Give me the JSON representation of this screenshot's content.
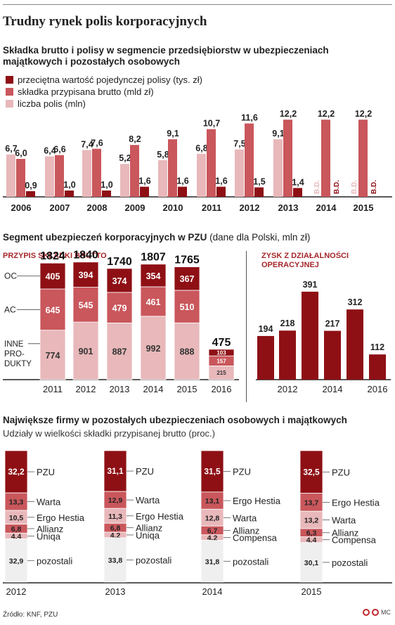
{
  "title": "Trudny rynek polis korporacyjnych",
  "section1": {
    "title_line1": "Składka brutto i polisy w segmencie przedsiębiorstw w ubezpieczeniach",
    "title_line2": "majątkowych i pozostałych osobowych"
  },
  "section2": {
    "title_bold": "Segment ubezpieczeń korporacyjnych w PZU",
    "title_normal": "(dane dla Polski, mln zł)",
    "left_label": "PRZYPIS SKŁADKI BRUTTO",
    "right_label_line1": "ZYSK Z DZIAŁALNOŚCI",
    "right_label_line2": "OPERACYJNEJ"
  },
  "section3": {
    "title": "Największe firmy w pozostałych ubezpieczeniach osobowych i majątkowych",
    "subtitle": "Udziały w wielkości składki przypisanej brutto (proc.)"
  },
  "source": "Źródło: KNF, PZU",
  "logo_text": "MC",
  "colors": {
    "dark": "#8e1015",
    "mid": "#c9575c",
    "light": "#e8b8ba",
    "grey": "#efefef",
    "accent": "#a5262a"
  },
  "chart_data": [
    {
      "id": "polisy",
      "type": "bar",
      "categories": [
        "2006",
        "2007",
        "2008",
        "2009",
        "2010",
        "2011",
        "2012",
        "2013",
        "2014",
        "2015"
      ],
      "series": [
        {
          "name": "przeciętna wartość pojedynczej polisy (tys. zł)",
          "color": "#8e1015",
          "values": [
            0.9,
            1.0,
            1.0,
            1.6,
            1.6,
            1.6,
            1.5,
            1.4,
            null,
            null
          ],
          "labels": [
            "0,9",
            "1,0",
            "1,0",
            "1,6",
            "1,6",
            "1,6",
            "1,5",
            "1,4",
            "B.D.",
            "B.D."
          ]
        },
        {
          "name": "składka przypisana brutto (mld zł)",
          "color": "#c9575c",
          "values": [
            6.0,
            6.6,
            7.6,
            8.2,
            9.1,
            10.7,
            11.6,
            12.2,
            12.2,
            12.2
          ],
          "labels": [
            "6,0",
            "6,6",
            "7,6",
            "8,2",
            "9,1",
            "10,7",
            "11,6",
            "12,2",
            "12,2",
            "12,2"
          ]
        },
        {
          "name": "liczba polis (mln)",
          "color": "#e8b8ba",
          "values": [
            6.7,
            6.4,
            7.4,
            5.2,
            5.8,
            6.8,
            7.5,
            9.1,
            null,
            null
          ],
          "labels": [
            "6,7",
            "6,4",
            "7,4",
            "5,2",
            "5,8",
            "6,8",
            "7,5",
            "9,1",
            "B.D.",
            "B.D."
          ]
        }
      ]
    },
    {
      "id": "przypis",
      "type": "bar",
      "stacked": true,
      "categories": [
        "2011",
        "2012",
        "2013",
        "2014",
        "2015",
        "2016"
      ],
      "totals": [
        1824,
        1840,
        1740,
        1807,
        1765,
        475
      ],
      "segment_labels": [
        "OC",
        "AC",
        "INNE PRO- DUKTY"
      ],
      "series": [
        {
          "name": "INNE PRODUKTY",
          "color": "#e8b8ba",
          "values": [
            774,
            901,
            887,
            992,
            888,
            215
          ]
        },
        {
          "name": "AC",
          "color": "#c9575c",
          "values": [
            645,
            545,
            479,
            461,
            510,
            157
          ]
        },
        {
          "name": "OC",
          "color": "#8e1015",
          "values": [
            405,
            394,
            374,
            354,
            367,
            103
          ]
        }
      ],
      "ticks": [
        "2011",
        "2012",
        "2013",
        "2014",
        "2015",
        "2016"
      ]
    },
    {
      "id": "zysk",
      "type": "bar",
      "categories": [
        "2011",
        "2012",
        "2013",
        "2014",
        "2015",
        "2016"
      ],
      "values": [
        194,
        218,
        391,
        217,
        312,
        112
      ],
      "ticks": [
        "2012",
        "2014",
        "2016"
      ]
    },
    {
      "id": "udzialy",
      "type": "bar",
      "stacked": true,
      "categories": [
        "2012",
        "2013",
        "2014",
        "2015"
      ],
      "stacks": [
        {
          "year": "2012",
          "segments": [
            {
              "name": "PZU",
              "value": 32.2,
              "label": "32,2"
            },
            {
              "name": "Warta",
              "value": 13.3,
              "label": "13,3"
            },
            {
              "name": "Ergo Hestia",
              "value": 10.5,
              "label": "10,5"
            },
            {
              "name": "Allianz",
              "value": 6.8,
              "label": "6,8"
            },
            {
              "name": "Uniqa",
              "value": 4.4,
              "label": "4,4"
            },
            {
              "name": "pozostali",
              "value": 32.9,
              "label": "32,9"
            }
          ]
        },
        {
          "year": "2013",
          "segments": [
            {
              "name": "PZU",
              "value": 31.1,
              "label": "31,1"
            },
            {
              "name": "Warta",
              "value": 12.9,
              "label": "12,9"
            },
            {
              "name": "Ergo Hestia",
              "value": 11.3,
              "label": "11,3"
            },
            {
              "name": "Allianz",
              "value": 6.8,
              "label": "6,8"
            },
            {
              "name": "Uniqa",
              "value": 4.2,
              "label": "4,2"
            },
            {
              "name": "pozostali",
              "value": 33.8,
              "label": "33,8"
            }
          ]
        },
        {
          "year": "2014",
          "segments": [
            {
              "name": "PZU",
              "value": 31.5,
              "label": "31,5"
            },
            {
              "name": "Ergo Hestia",
              "value": 13.1,
              "label": "13,1"
            },
            {
              "name": "Warta",
              "value": 12.8,
              "label": "12,8"
            },
            {
              "name": "Allianz",
              "value": 6.7,
              "label": "6,7"
            },
            {
              "name": "Compensa",
              "value": 4.2,
              "label": "4,2"
            },
            {
              "name": "pozostali",
              "value": 31.8,
              "label": "31,8"
            }
          ]
        },
        {
          "year": "2015",
          "segments": [
            {
              "name": "PZU",
              "value": 32.5,
              "label": "32,5"
            },
            {
              "name": "Ergo Hestia",
              "value": 13.7,
              "label": "13,7"
            },
            {
              "name": "Warta",
              "value": 13.2,
              "label": "13,2"
            },
            {
              "name": "Allianz",
              "value": 6.3,
              "label": "6,3"
            },
            {
              "name": "Compensa",
              "value": 4.4,
              "label": "4,4"
            },
            {
              "name": "pozostali",
              "value": 30.1,
              "label": "30,1"
            }
          ]
        }
      ]
    }
  ]
}
